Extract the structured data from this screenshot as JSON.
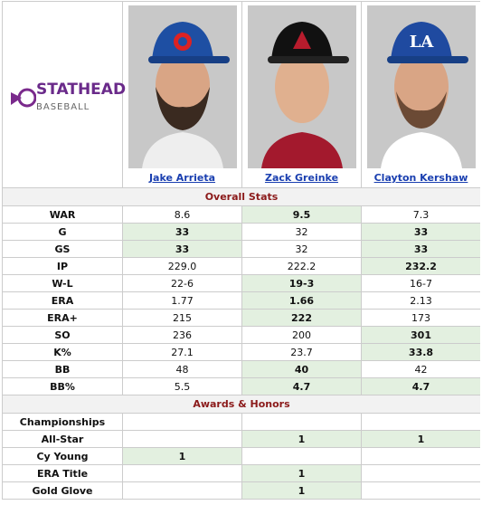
{
  "logo": {
    "line1": "STATHEAD",
    "line2": "BASEBALL"
  },
  "players": [
    "Jake Arrieta",
    "Zack Greinke",
    "Clayton Kershaw"
  ],
  "sections": [
    {
      "title": "Overall Stats",
      "rows": [
        {
          "label": "WAR",
          "values": [
            "8.6",
            "9.5",
            "7.3"
          ],
          "best": [
            1
          ]
        },
        {
          "label": "G",
          "values": [
            "33",
            "32",
            "33"
          ],
          "best": [
            0,
            2
          ]
        },
        {
          "label": "GS",
          "values": [
            "33",
            "32",
            "33"
          ],
          "best": [
            0,
            2
          ]
        },
        {
          "label": "IP",
          "values": [
            "229.0",
            "222.2",
            "232.2"
          ],
          "best": [
            2
          ]
        },
        {
          "label": "W-L",
          "values": [
            "22-6",
            "19-3",
            "16-7"
          ],
          "best": [
            1
          ]
        },
        {
          "label": "ERA",
          "values": [
            "1.77",
            "1.66",
            "2.13"
          ],
          "best": [
            1
          ]
        },
        {
          "label": "ERA+",
          "values": [
            "215",
            "222",
            "173"
          ],
          "best": [
            1
          ]
        },
        {
          "label": "SO",
          "values": [
            "236",
            "200",
            "301"
          ],
          "best": [
            2
          ]
        },
        {
          "label": "K%",
          "values": [
            "27.1",
            "23.7",
            "33.8"
          ],
          "best": [
            2
          ]
        },
        {
          "label": "BB",
          "values": [
            "48",
            "40",
            "42"
          ],
          "best": [
            1
          ]
        },
        {
          "label": "BB%",
          "values": [
            "5.5",
            "4.7",
            "4.7"
          ],
          "best": [
            1,
            2
          ]
        }
      ]
    },
    {
      "title": "Awards & Honors",
      "rows": [
        {
          "label": "Championships",
          "values": [
            null,
            null,
            null
          ],
          "best": []
        },
        {
          "label": "All-Star",
          "values": [
            null,
            "1",
            "1"
          ],
          "best": [
            1,
            2
          ]
        },
        {
          "label": "Cy Young",
          "values": [
            "1",
            null,
            null
          ],
          "best": [
            0
          ]
        },
        {
          "label": "ERA Title",
          "values": [
            null,
            "1",
            null
          ],
          "best": [
            1
          ]
        },
        {
          "label": "Gold Glove",
          "values": [
            null,
            "1",
            null
          ],
          "best": [
            1
          ]
        }
      ]
    }
  ]
}
